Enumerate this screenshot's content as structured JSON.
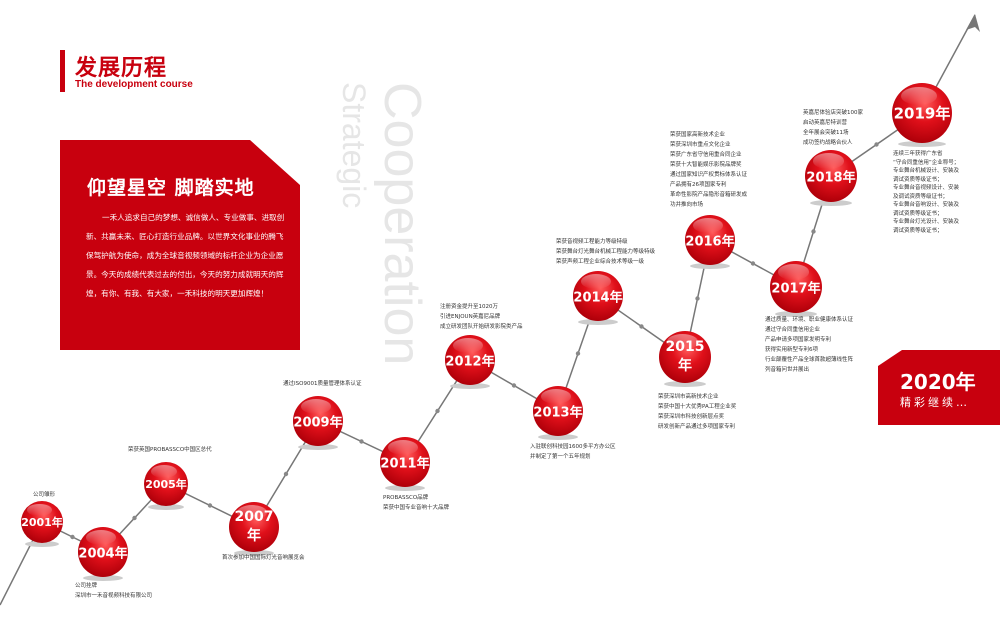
{
  "header": {
    "title": "发展历程",
    "subtitle": "The development course"
  },
  "watermark": {
    "line1": "Cooperation",
    "line2": "Strategic"
  },
  "intro": {
    "title": "仰望星空 脚踏实地",
    "body": "一禾人追求自己的梦想、诚信做人、专业做事、进取创新、共赢未来、匠心打造行业品牌。以世界文化事业的腾飞保驾护航为使命，成为全球音视频领域的标杆企业为企业愿景。今天的成绩代表过去的付出，今天的努力成就明天的辉煌，有你、有我、有大家，一禾科技的明天更加辉煌！"
  },
  "future": {
    "year": "2020年",
    "text": "精彩继续…"
  },
  "colors": {
    "accent": "#c8000e",
    "line": "#777777"
  },
  "milestones": [
    {
      "year": "2001年",
      "lines": [
        "公司雏形"
      ]
    },
    {
      "year": "2004年",
      "lines": [
        "公司挂牌",
        "深圳市一禾音视频科技有限公司"
      ]
    },
    {
      "year": "2005年",
      "lines": [
        "荣获英国PROBASSCO中国区总代"
      ]
    },
    {
      "year": "2007年",
      "lines": [
        "首次参加中国国际灯光音响展览会"
      ]
    },
    {
      "year": "2009年",
      "lines": [
        "通过ISO9001质量管理体系认证"
      ]
    },
    {
      "year": "2011年",
      "lines": [
        "PROBASSCO品牌",
        "荣获中国专业音响十大品牌"
      ]
    },
    {
      "year": "2012年",
      "lines": [
        "注册资金提升至1020万",
        "引进ENJOUN英嘉尼品牌",
        "成立研发团队开始研发影院类产品"
      ]
    },
    {
      "year": "2013年",
      "lines": [
        "入驻联创科技园1600多平方办公区",
        "并制定了第一个五年规划"
      ]
    },
    {
      "year": "2014年",
      "lines": [
        "荣获音视频工程能力等级特级",
        "荣获舞台灯光舞台机械工程能力等级特级",
        "荣获声频工程企业综合技术等级一级"
      ]
    },
    {
      "year": "2015年",
      "lines": [
        "荣获深圳市高新技术企业",
        "荣获中国十大优秀PA工程企业奖",
        "荣获深圳市科技创新层点奖",
        "研发创新产品通过多项国家专利"
      ]
    },
    {
      "year": "2016年",
      "lines": [
        "荣获国家高新技术企业",
        "荣获深圳市重点文化企业",
        "荣获广东省守信用重合同企业",
        "荣获十大智能娱乐影院品牌奖",
        "通过国家知识产权贯标体系认证",
        "产品拥有26项国家专利",
        "革命性影院产品隐形音箱研发成",
        "功并推向市场"
      ]
    },
    {
      "year": "2017年",
      "lines": [
        "通过质量、环境、职业健康体系认证",
        "通过守合同重信用企业",
        "产品申请多项国家发明专利",
        "获得实用新型专利6项",
        "行业颠覆性产品全球首款超薄线性阵",
        "列音箱问世并展出"
      ]
    },
    {
      "year": "2018年",
      "lines": [
        "英嘉尼体验店突破100家",
        "启动英嘉尼特训营",
        "全年展会突破11场",
        "成功签约战略合伙人"
      ]
    },
    {
      "year": "2019年",
      "lines": [
        "连续三年获得广东省",
        "“守合同重信用”企业称号；",
        "专业舞台机械设计、安装及",
        "调试资质等级证书；",
        "专业舞台音视频设计、安装",
        "及调试资质等级证书；",
        "专业舞台音响设计、安装及",
        "调试资质等级证书；",
        "专业舞台灯光设计、安装及",
        "调试资质等级证书；"
      ]
    }
  ]
}
